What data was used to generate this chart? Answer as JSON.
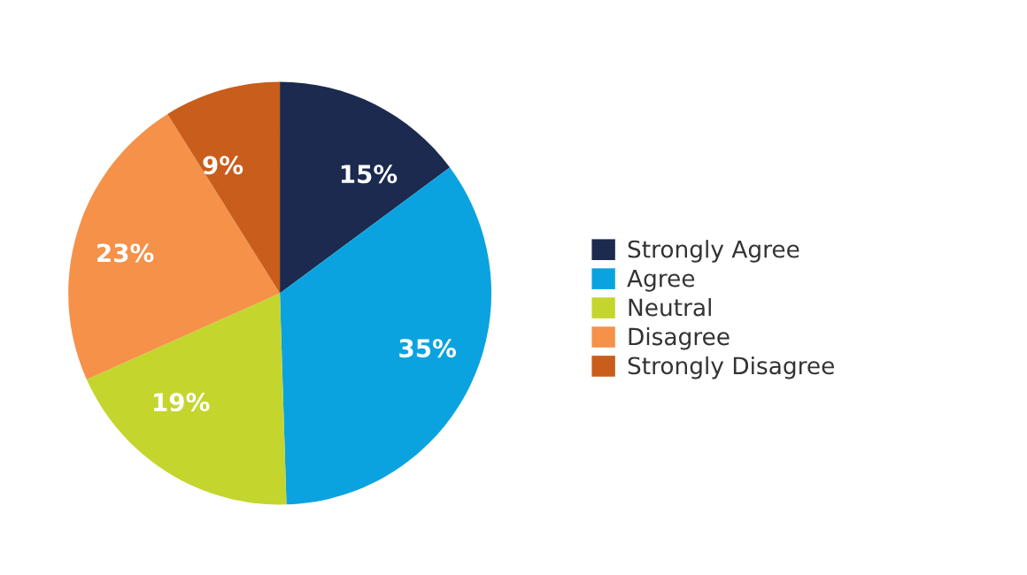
{
  "chart_data": {
    "type": "pie",
    "categories": [
      "Strongly Agree",
      "Agree",
      "Neutral",
      "Disagree",
      "Strongly Disagree"
    ],
    "values": [
      15,
      35,
      19,
      23,
      9
    ],
    "value_labels": [
      "15%",
      "35%",
      "19%",
      "23%",
      "9%"
    ],
    "colors": [
      "#1b2a4e",
      "#0aa3df",
      "#c4d52e",
      "#f59149",
      "#c85d1c"
    ],
    "legend": "right"
  }
}
